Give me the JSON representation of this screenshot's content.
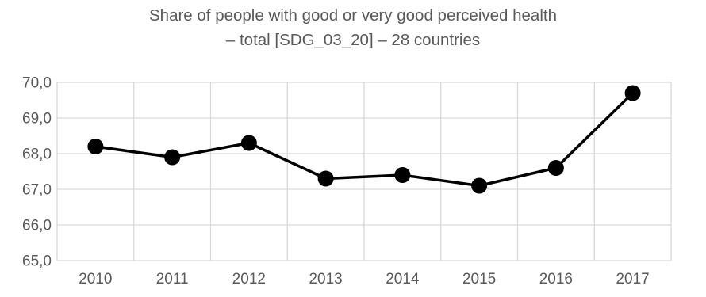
{
  "chart_data": {
    "type": "line",
    "title_lines": [
      "Share of people with good or very good perceived health",
      "– total [SDG_03_20] – 28 countries"
    ],
    "xlabel": "",
    "ylabel": "",
    "x": [
      "2010",
      "2011",
      "2012",
      "2013",
      "2014",
      "2015",
      "2016",
      "2017"
    ],
    "series": [
      {
        "values": [
          68.2,
          67.9,
          68.3,
          67.3,
          67.4,
          67.1,
          67.6,
          69.7
        ],
        "color": "#000000"
      }
    ],
    "ylim": [
      65.0,
      70.0
    ],
    "yticks": [
      "65,0",
      "66,0",
      "67,0",
      "68,0",
      "69,0",
      "70,0"
    ],
    "grid": true,
    "gridline_color": "#d9d9d9",
    "legend": "none"
  }
}
